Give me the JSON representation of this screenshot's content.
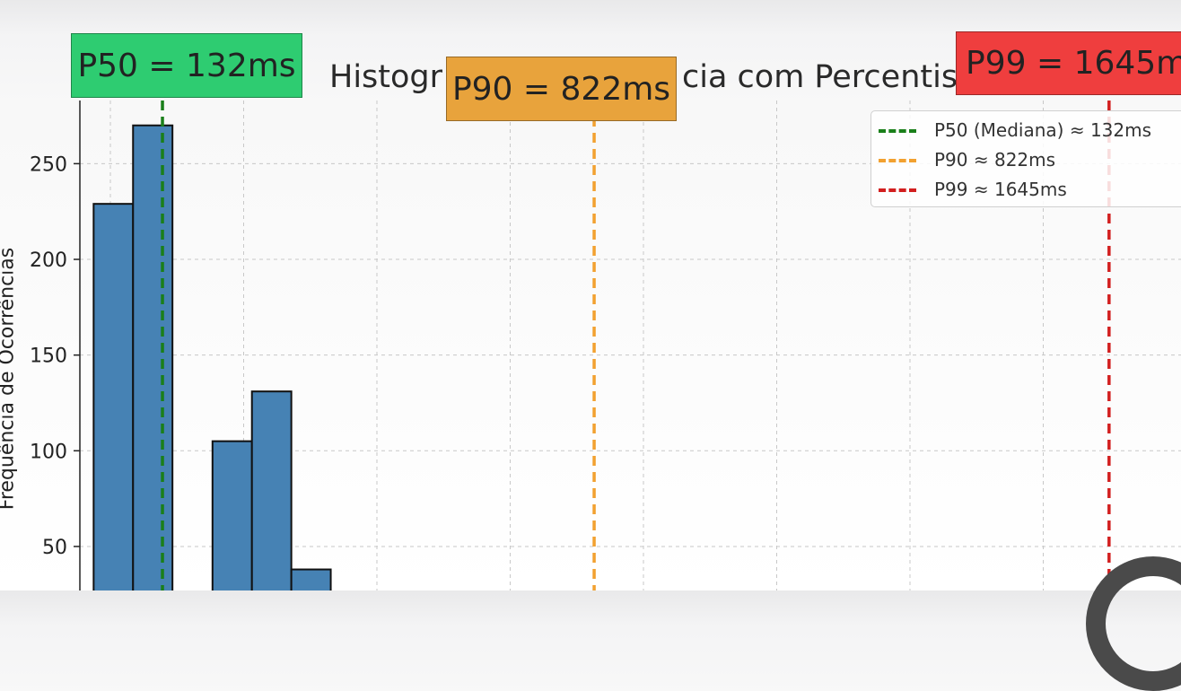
{
  "chart_data": {
    "type": "bar",
    "title_prefix": "Histogr",
    "title_suffix": "cia com Percentis",
    "ylabel": "Frequência de Ocorrências",
    "xlabel": "",
    "ylim": [
      27,
      283
    ],
    "yticks": [
      50,
      100,
      150,
      200,
      250
    ],
    "xlim": [
      0,
      1760
    ],
    "grid": true,
    "legend_position": "top-right",
    "bins": [
      {
        "x0": 22,
        "x1": 85,
        "count": 229
      },
      {
        "x0": 85,
        "x1": 148,
        "count": 270
      },
      {
        "x0": 212,
        "x1": 275,
        "count": 105
      },
      {
        "x0": 275,
        "x1": 338,
        "count": 131
      },
      {
        "x0": 338,
        "x1": 401,
        "count": 38
      }
    ],
    "percentile_lines": [
      {
        "name": "P50 (Mediana) ≈ 132ms",
        "value": 132,
        "color": "#1a7f1a"
      },
      {
        "name": "P90 ≈ 822ms",
        "value": 822,
        "color": "#f2a130"
      },
      {
        "name": "P99 ≈ 1645ms",
        "value": 1645,
        "color": "#d21f1f"
      }
    ],
    "annotations": [
      {
        "text": "P50 = 132ms",
        "color": "#2ecc71"
      },
      {
        "text": "P90 = 822ms",
        "color": "#e8a33c"
      },
      {
        "text": "P99 = 1645ms",
        "color": "#ef3e3e"
      }
    ]
  }
}
